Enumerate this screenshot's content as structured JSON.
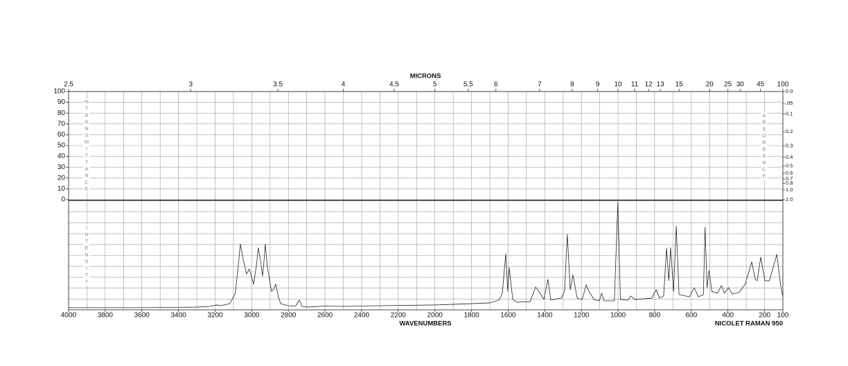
{
  "chart_data": [
    {
      "type": "frame",
      "x2label": "MICRONS",
      "x2lim": [
        2.5,
        100
      ],
      "x2scale": "reciprocal",
      "x2ticks": [
        2.5,
        3,
        3.5,
        4,
        4.5,
        5,
        5.5,
        6,
        7,
        8,
        9,
        10,
        11,
        12,
        13,
        15,
        20,
        25,
        30,
        45,
        100
      ],
      "xlim": [
        4000,
        100
      ],
      "xgrid": [
        4000,
        3900,
        3800,
        3700,
        3600,
        3500,
        3400,
        3300,
        3200,
        3100,
        3000,
        2900,
        2800,
        2700,
        2600,
        2500,
        2400,
        2300,
        2200,
        2100,
        2000,
        1900,
        1800,
        1700,
        1600,
        1500,
        1400,
        1300,
        1200,
        1100,
        1000,
        900,
        800,
        700,
        600,
        500,
        400,
        300,
        200,
        100
      ],
      "ylabel": "% TRANSMITTANCE",
      "ylim": [
        0,
        100
      ],
      "yticks": [
        0,
        10,
        20,
        30,
        40,
        50,
        60,
        70,
        80,
        90,
        100
      ],
      "y2label": "ABSORBANCE",
      "y2lim": [
        0,
        2
      ],
      "y2scale": "absorbance",
      "y2ticks": [
        {
          "value": 0,
          "label": "0.0"
        },
        {
          "value": 0.05,
          "label": ".05"
        },
        0.1,
        0.2,
        0.3,
        0.4,
        0.5,
        0.6,
        0.7,
        0.8,
        {
          "value": 1,
          "label": "1.0"
        },
        {
          "value": 2,
          "label": "2.0"
        }
      ],
      "grid": true
    },
    {
      "type": "line",
      "xlabel": "WAVENUMBERS",
      "note": "NICOLET RAMAN 950",
      "xlim": [
        4000,
        100
      ],
      "xticks": [
        4000,
        3800,
        3600,
        3400,
        3200,
        3000,
        2800,
        2600,
        2400,
        2200,
        2000,
        1800,
        1600,
        1400,
        1200,
        1000,
        800,
        600,
        400,
        200,
        100
      ],
      "ylabel": "INTENSITY",
      "ylim": [
        0,
        100
      ],
      "ygrid": [
        10,
        20,
        30,
        40,
        50,
        60,
        70,
        80,
        90
      ],
      "color": "#222222",
      "x": [
        4000,
        3600,
        3300,
        3230,
        3190,
        3170,
        3120,
        3090,
        3075,
        3062,
        3045,
        3028,
        3013,
        2990,
        2975,
        2964,
        2952,
        2941,
        2933,
        2926,
        2915,
        2892,
        2880,
        2869,
        2855,
        2842,
        2800,
        2760,
        2740,
        2725,
        2700,
        2600,
        2500,
        2300,
        2000,
        1800,
        1700,
        1650,
        1632,
        1613,
        1602,
        1594,
        1575,
        1550,
        1480,
        1450,
        1423,
        1405,
        1383,
        1367,
        1310,
        1292,
        1277,
        1261,
        1246,
        1223,
        1196,
        1174,
        1159,
        1147,
        1132,
        1102,
        1090,
        1076,
        1020,
        1001,
        987,
        948,
        930,
        907,
        815,
        792,
        773,
        751,
        735,
        723,
        713,
        697,
        682,
        667,
        610,
        584,
        561,
        534,
        525,
        514,
        503,
        488,
        458,
        435,
        420,
        397,
        378,
        340,
        306,
        270,
        251,
        240,
        221,
        198,
        174,
        152,
        133,
        113,
        100
      ],
      "values": [
        2.0,
        2.0,
        2.5,
        3.2,
        4.5,
        3.8,
        5.7,
        15,
        38,
        60.5,
        45,
        33,
        37.6,
        23.6,
        40,
        57,
        45,
        31,
        45,
        60.5,
        40,
        17,
        19,
        23.6,
        12,
        5.7,
        3.8,
        3.5,
        9,
        3.2,
        2.5,
        3.5,
        3.2,
        3.8,
        4.5,
        5.7,
        6.4,
        9,
        15,
        51.6,
        17,
        39,
        9.5,
        7,
        7.6,
        21,
        14.6,
        9.5,
        28,
        8.9,
        10.8,
        17,
        69.4,
        18.5,
        32,
        10.8,
        9.5,
        23,
        17,
        14,
        9.5,
        8.3,
        15.3,
        8.3,
        8.3,
        99.4,
        9.5,
        8.9,
        12.7,
        9.5,
        10.8,
        18.5,
        10.8,
        12.7,
        56.7,
        26.8,
        57.3,
        17,
        77,
        14,
        12,
        20.4,
        12,
        14,
        75.8,
        20.4,
        36.3,
        17,
        15.3,
        22.3,
        15.3,
        20.4,
        14.6,
        15.9,
        23.6,
        44,
        28,
        26.8,
        48.4,
        26.8,
        26.8,
        39.5,
        51,
        23.6,
        12
      ]
    }
  ]
}
